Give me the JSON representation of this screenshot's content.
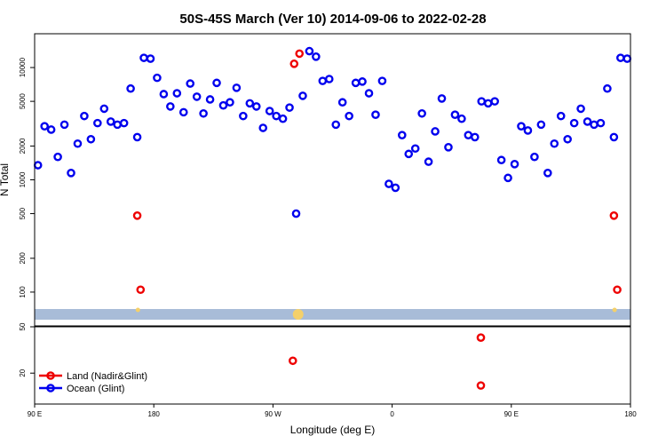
{
  "chart_data": {
    "type": "scatter",
    "title": "50S-45S March (Ver 10)   2014-09-06 to 2022-02-28",
    "xlabel": "Longitude (deg E)",
    "ylabel": "N Total",
    "x_ticks": [
      {
        "label": "90 E"
      },
      {
        "label": "180"
      },
      {
        "label": "90 W"
      },
      {
        "label": "0"
      },
      {
        "label": "90 E"
      },
      {
        "label": "180"
      }
    ],
    "x_tick_positions": [
      90,
      180,
      270,
      360,
      450,
      540
    ],
    "xlim": [
      90,
      540
    ],
    "top_panel": {
      "y_scale": "log",
      "ylim": [
        50,
        20000
      ],
      "y_ticks": [
        {
          "value": 100,
          "label": "100"
        },
        {
          "value": 200,
          "label": "200"
        },
        {
          "value": 500,
          "label": "500"
        },
        {
          "value": 1000,
          "label": "1000"
        },
        {
          "value": 2000,
          "label": "2000"
        },
        {
          "value": 5000,
          "label": "5000"
        },
        {
          "value": 10000,
          "label": "10000"
        }
      ]
    },
    "bottom_panel": {
      "y_scale": "linear",
      "ylim": [
        0,
        50
      ],
      "y_ticks": [
        {
          "value": 20,
          "label": "20"
        },
        {
          "value": 50,
          "label": "50"
        }
      ]
    },
    "legend_position": "bottom-left",
    "series": [
      {
        "name": "Ocean (Glint)",
        "color": "#0000ee",
        "panel": "top",
        "points": [
          [
            92.5,
            1350
          ],
          [
            97.5,
            3000
          ],
          [
            102.5,
            2800
          ],
          [
            107.5,
            1600
          ],
          [
            112.5,
            3100
          ],
          [
            117.5,
            1150
          ],
          [
            122.5,
            2100
          ],
          [
            127.5,
            3700
          ],
          [
            132.5,
            2300
          ],
          [
            137.5,
            3200
          ],
          [
            142.5,
            4300
          ],
          [
            147.5,
            3300
          ],
          [
            152.5,
            3100
          ],
          [
            157.5,
            3200
          ],
          [
            162.5,
            6500
          ],
          [
            167.5,
            2400
          ],
          [
            172.5,
            12200
          ],
          [
            177.5,
            12000
          ],
          [
            182.5,
            8100
          ],
          [
            187.5,
            5800
          ],
          [
            192.5,
            4500
          ],
          [
            197.5,
            5900
          ],
          [
            202.5,
            4000
          ],
          [
            207.5,
            7200
          ],
          [
            212.5,
            5500
          ],
          [
            217.5,
            3900
          ],
          [
            222.5,
            5200
          ],
          [
            227.5,
            7300
          ],
          [
            232.5,
            4600
          ],
          [
            237.5,
            4900
          ],
          [
            242.5,
            6600
          ],
          [
            247.5,
            3700
          ],
          [
            252.5,
            4800
          ],
          [
            257.5,
            4500
          ],
          [
            262.5,
            2900
          ],
          [
            267.5,
            4100
          ],
          [
            272.5,
            3700
          ],
          [
            277.5,
            3500
          ],
          [
            282.5,
            4400
          ],
          [
            287.5,
            500
          ],
          [
            292.5,
            5600
          ],
          [
            297.5,
            14000
          ],
          [
            302.5,
            12500
          ],
          [
            307.5,
            7600
          ],
          [
            312.5,
            7900
          ],
          [
            317.5,
            3100
          ],
          [
            322.5,
            4900
          ],
          [
            327.5,
            3700
          ],
          [
            332.5,
            7300
          ],
          [
            337.5,
            7500
          ],
          [
            342.5,
            5900
          ],
          [
            347.5,
            3800
          ],
          [
            352.5,
            7600
          ],
          [
            357.5,
            920
          ],
          [
            362.5,
            850
          ],
          [
            367.5,
            2500
          ],
          [
            372.5,
            1700
          ],
          [
            377.5,
            1900
          ],
          [
            382.5,
            3900
          ],
          [
            387.5,
            1450
          ],
          [
            392.5,
            2700
          ],
          [
            397.5,
            5300
          ],
          [
            402.5,
            1950
          ],
          [
            407.5,
            3800
          ],
          [
            412.5,
            3500
          ],
          [
            417.5,
            2500
          ],
          [
            422.5,
            2400
          ],
          [
            427.5,
            5000
          ],
          [
            432.5,
            4800
          ],
          [
            437.5,
            5000
          ],
          [
            442.5,
            1500
          ],
          [
            447.5,
            1040
          ],
          [
            452.5,
            1380
          ],
          [
            457.5,
            3000
          ],
          [
            462.5,
            2750
          ],
          [
            467.5,
            1600
          ],
          [
            472.5,
            3100
          ],
          [
            477.5,
            1150
          ],
          [
            482.5,
            2100
          ],
          [
            487.5,
            3700
          ],
          [
            492.5,
            2300
          ],
          [
            497.5,
            3200
          ],
          [
            502.5,
            4300
          ],
          [
            507.5,
            3300
          ],
          [
            512.5,
            3100
          ],
          [
            517.5,
            3200
          ],
          [
            522.5,
            6500
          ],
          [
            527.5,
            2400
          ],
          [
            532.5,
            12200
          ],
          [
            537.5,
            12000
          ]
        ]
      },
      {
        "name": "Land (Nadir&Glint)",
        "color": "#ee0000",
        "panel": "top",
        "points": [
          [
            167.5,
            480
          ],
          [
            170,
            105
          ],
          [
            286,
            10800
          ],
          [
            290,
            13300
          ],
          [
            527.5,
            480
          ],
          [
            530,
            105
          ]
        ]
      },
      {
        "color": "#ee0000",
        "panel": "bottom",
        "points": [
          [
            285,
            28
          ],
          [
            427,
            12
          ],
          [
            427,
            43
          ]
        ]
      }
    ],
    "band": {
      "color": "#a8bcd8"
    },
    "band_markers": [
      {
        "x": 168,
        "size": "small"
      },
      {
        "x": 289,
        "size": "large"
      },
      {
        "x": 528,
        "size": "small"
      }
    ],
    "band_marker_color": "#f4d06a"
  }
}
